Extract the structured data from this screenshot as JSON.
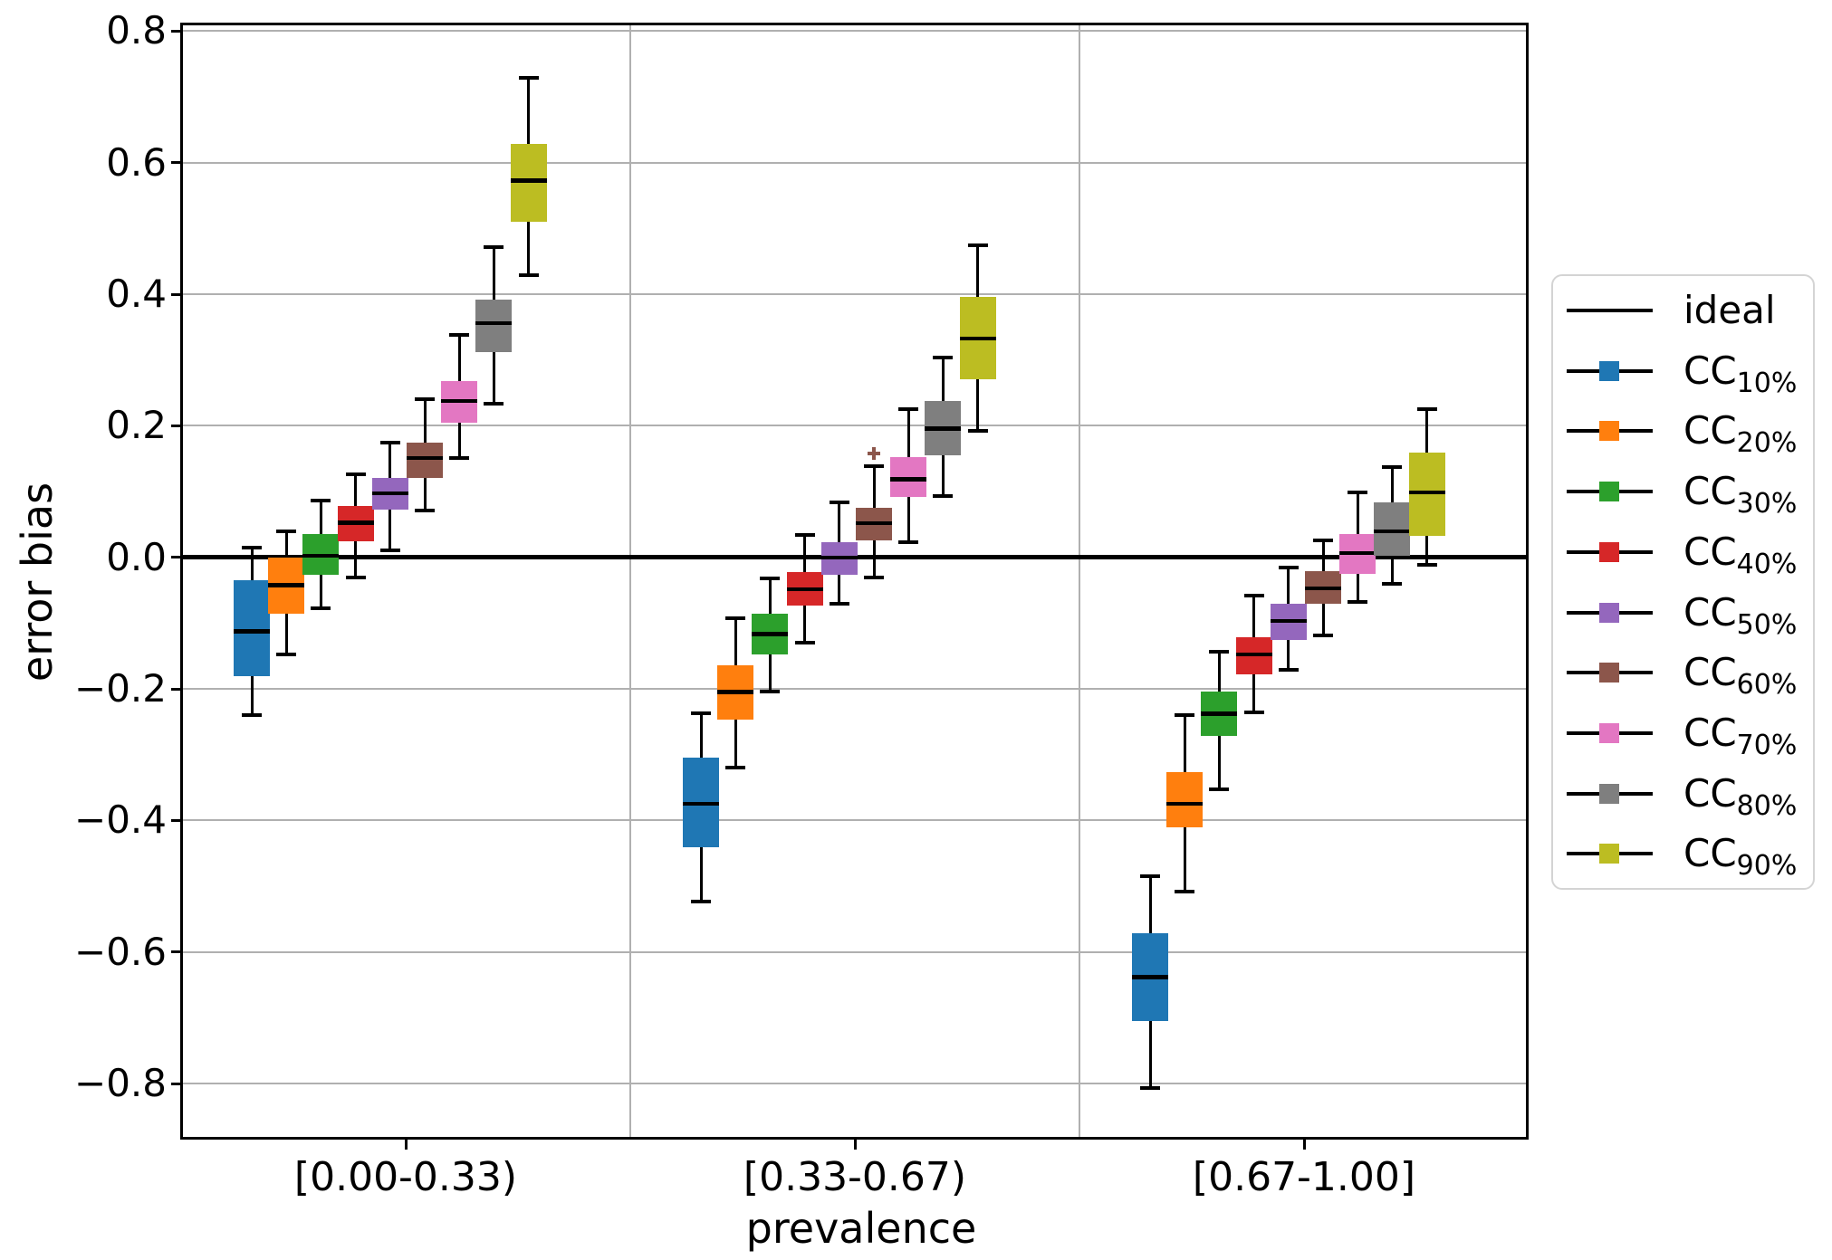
{
  "figure": {
    "background": "#ffffff",
    "grid_color": "#b0b0b0",
    "frame_color": "#000000"
  },
  "chart_data": {
    "type": "grouped_boxplot",
    "title": "",
    "xlabel": "prevalence",
    "ylabel": "error bias",
    "categories": [
      "[0.00-0.33)",
      "[0.33-0.67)",
      "[0.67-1.00]"
    ],
    "yticks": [
      0.8,
      0.6,
      0.4,
      0.2,
      0.0,
      -0.2,
      -0.4,
      -0.6,
      -0.8
    ],
    "ytick_labels": [
      "0.8",
      "0.6",
      "0.4",
      "0.2",
      "0.0",
      "−0.2",
      "−0.4",
      "−0.6",
      "−0.8"
    ],
    "ylim": [
      -0.885,
      0.81
    ],
    "grid": "horizontal gridlines plus vertical category separators",
    "ideal_line_y": 0.0,
    "legend": {
      "position": "right-outside",
      "entries": [
        {
          "label": "ideal",
          "type": "line",
          "color": "#000000"
        },
        {
          "label": "CC",
          "sub": "10%",
          "type": "line-marker",
          "color": "#1f77b4"
        },
        {
          "label": "CC",
          "sub": "20%",
          "type": "line-marker",
          "color": "#ff7f0e"
        },
        {
          "label": "CC",
          "sub": "30%",
          "type": "line-marker",
          "color": "#2ca02c"
        },
        {
          "label": "CC",
          "sub": "40%",
          "type": "line-marker",
          "color": "#d62728"
        },
        {
          "label": "CC",
          "sub": "50%",
          "type": "line-marker",
          "color": "#9467bd"
        },
        {
          "label": "CC",
          "sub": "60%",
          "type": "line-marker",
          "color": "#8c564b"
        },
        {
          "label": "CC",
          "sub": "70%",
          "type": "line-marker",
          "color": "#e377c2"
        },
        {
          "label": "CC",
          "sub": "80%",
          "type": "line-marker",
          "color": "#7f7f7f"
        },
        {
          "label": "CC",
          "sub": "90%",
          "type": "line-marker",
          "color": "#bcbd22"
        }
      ]
    },
    "series": [
      {
        "name": "CC10%",
        "color": "#1f77b4",
        "boxes": [
          {
            "whislo": -0.24,
            "q1": -0.18,
            "med": -0.112,
            "q3": -0.035,
            "whishi": 0.015,
            "fliers": []
          },
          {
            "whislo": -0.523,
            "q1": -0.441,
            "med": -0.374,
            "q3": -0.304,
            "whishi": -0.237,
            "fliers": []
          },
          {
            "whislo": -0.807,
            "q1": -0.705,
            "med": -0.638,
            "q3": -0.571,
            "whishi": -0.484,
            "fliers": []
          }
        ]
      },
      {
        "name": "CC20%",
        "color": "#ff7f0e",
        "boxes": [
          {
            "whislo": -0.147,
            "q1": -0.085,
            "med": -0.042,
            "q3": 0.0,
            "whishi": 0.04,
            "fliers": []
          },
          {
            "whislo": -0.319,
            "q1": -0.247,
            "med": -0.204,
            "q3": -0.164,
            "whishi": -0.093,
            "fliers": []
          },
          {
            "whislo": -0.508,
            "q1": -0.411,
            "med": -0.374,
            "q3": -0.327,
            "whishi": -0.24,
            "fliers": []
          }
        ]
      },
      {
        "name": "CC30%",
        "color": "#2ca02c",
        "boxes": [
          {
            "whislo": -0.077,
            "q1": -0.027,
            "med": 0.003,
            "q3": 0.036,
            "whishi": 0.086,
            "fliers": []
          },
          {
            "whislo": -0.204,
            "q1": -0.148,
            "med": -0.116,
            "q3": -0.086,
            "whishi": -0.032,
            "fliers": []
          },
          {
            "whislo": -0.353,
            "q1": -0.271,
            "med": -0.237,
            "q3": -0.204,
            "whishi": -0.144,
            "fliers": []
          }
        ]
      },
      {
        "name": "CC40%",
        "color": "#d62728",
        "boxes": [
          {
            "whislo": -0.03,
            "q1": 0.025,
            "med": 0.053,
            "q3": 0.078,
            "whishi": 0.126,
            "fliers": []
          },
          {
            "whislo": -0.13,
            "q1": -0.073,
            "med": -0.048,
            "q3": -0.023,
            "whishi": 0.034,
            "fliers": []
          },
          {
            "whislo": -0.236,
            "q1": -0.178,
            "med": -0.147,
            "q3": -0.121,
            "whishi": -0.058,
            "fliers": []
          }
        ]
      },
      {
        "name": "CC50%",
        "color": "#9467bd",
        "boxes": [
          {
            "whislo": 0.011,
            "q1": 0.072,
            "med": 0.098,
            "q3": 0.121,
            "whishi": 0.175,
            "fliers": []
          },
          {
            "whislo": -0.071,
            "q1": -0.026,
            "med": 0.0,
            "q3": 0.023,
            "whishi": 0.084,
            "fliers": []
          },
          {
            "whislo": -0.171,
            "q1": -0.125,
            "med": -0.096,
            "q3": -0.071,
            "whishi": -0.016,
            "fliers": []
          }
        ]
      },
      {
        "name": "CC60%",
        "color": "#8c564b",
        "boxes": [
          {
            "whislo": 0.071,
            "q1": 0.121,
            "med": 0.151,
            "q3": 0.175,
            "whishi": 0.24,
            "fliers": []
          },
          {
            "whislo": -0.03,
            "q1": 0.026,
            "med": 0.052,
            "q3": 0.075,
            "whishi": 0.138,
            "fliers": [
              0.158
            ]
          },
          {
            "whislo": -0.119,
            "q1": -0.071,
            "med": -0.047,
            "q3": -0.021,
            "whishi": 0.026,
            "fliers": []
          }
        ]
      },
      {
        "name": "CC70%",
        "color": "#e377c2",
        "boxes": [
          {
            "whislo": 0.151,
            "q1": 0.205,
            "med": 0.238,
            "q3": 0.268,
            "whishi": 0.338,
            "fliers": []
          },
          {
            "whislo": 0.023,
            "q1": 0.092,
            "med": 0.119,
            "q3": 0.153,
            "whishi": 0.225,
            "fliers": []
          },
          {
            "whislo": -0.068,
            "q1": -0.025,
            "med": 0.007,
            "q3": 0.036,
            "whishi": 0.099,
            "fliers": []
          }
        ]
      },
      {
        "name": "CC80%",
        "color": "#7f7f7f",
        "boxes": [
          {
            "whislo": 0.233,
            "q1": 0.312,
            "med": 0.356,
            "q3": 0.392,
            "whishi": 0.471,
            "fliers": []
          },
          {
            "whislo": 0.093,
            "q1": 0.155,
            "med": 0.196,
            "q3": 0.238,
            "whishi": 0.304,
            "fliers": []
          },
          {
            "whislo": -0.04,
            "q1": 0.003,
            "med": 0.04,
            "q3": 0.084,
            "whishi": 0.137,
            "fliers": []
          }
        ]
      },
      {
        "name": "CC90%",
        "color": "#bcbd22",
        "boxes": [
          {
            "whislo": 0.429,
            "q1": 0.51,
            "med": 0.573,
            "q3": 0.629,
            "whishi": 0.729,
            "fliers": []
          },
          {
            "whislo": 0.192,
            "q1": 0.27,
            "med": 0.333,
            "q3": 0.396,
            "whishi": 0.474,
            "fliers": []
          },
          {
            "whislo": -0.011,
            "q1": 0.033,
            "med": 0.099,
            "q3": 0.159,
            "whishi": 0.225,
            "fliers": []
          }
        ]
      }
    ]
  }
}
